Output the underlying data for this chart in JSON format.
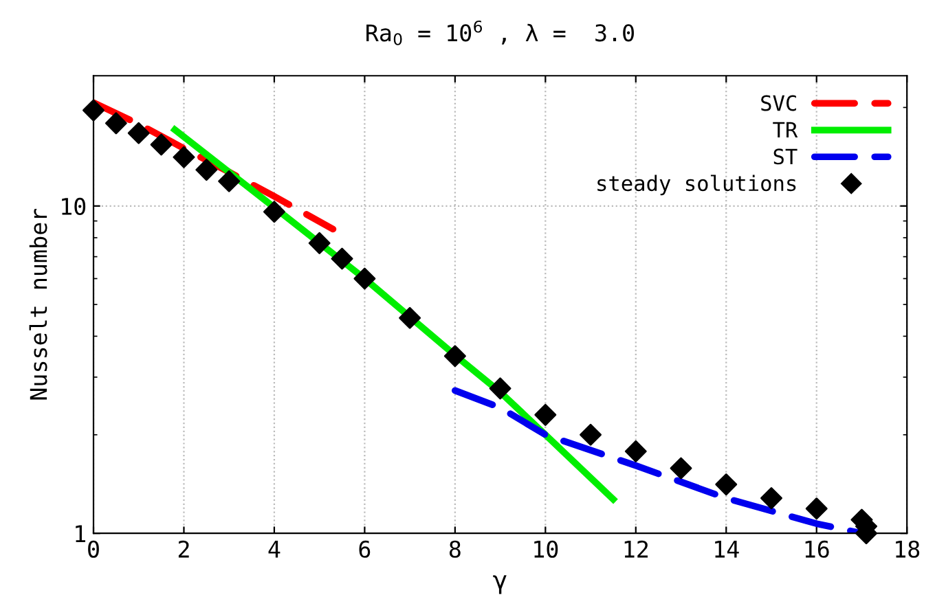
{
  "chart_data": {
    "type": "line",
    "title": "Ra$_{0}$ = 10$^{6}$ , λ =  3.0",
    "xlabel": "γ",
    "ylabel": "Nusselt number",
    "log": "y",
    "xlim": [
      0,
      18
    ],
    "xticks": [
      0,
      2,
      4,
      6,
      8,
      10,
      12,
      14,
      16,
      18
    ],
    "ylim": [
      1,
      25
    ],
    "yticks": [
      1,
      10
    ],
    "grid": true,
    "legend": "top right",
    "series": [
      {
        "name": "SVC",
        "line_style": "dashed",
        "color": "#ff0000",
        "x": [
          0,
          1,
          2,
          3,
          4,
          5.3
        ],
        "values": [
          20.7,
          17.8,
          15.0,
          12.7,
          10.7,
          8.5
        ]
      },
      {
        "name": "TR",
        "line_style": "solid",
        "color": "#00ee00",
        "x": [
          1.8,
          4,
          6,
          8,
          9,
          10,
          11.5
        ],
        "values": [
          17.1,
          9.9,
          6.0,
          3.5,
          2.7,
          2.0,
          1.27
        ]
      },
      {
        "name": "ST",
        "line_style": "dashed",
        "color": "#0000ee",
        "x": [
          8,
          9,
          10,
          12,
          14,
          16,
          17
        ],
        "values": [
          2.73,
          2.42,
          2.0,
          1.61,
          1.28,
          1.07,
          1.0
        ]
      },
      {
        "name": "steady solutions",
        "type": "scatter",
        "marker": "diamond",
        "color": "#000000",
        "x": [
          0,
          0.5,
          1,
          1.5,
          2,
          2.5,
          3,
          4,
          5,
          5.5,
          6,
          7,
          8,
          9,
          10,
          11,
          12,
          13,
          14,
          15,
          16,
          17,
          17.1,
          17.1
        ],
        "values": [
          19.6,
          17.9,
          16.7,
          15.4,
          14.1,
          12.9,
          11.9,
          9.6,
          7.7,
          6.9,
          6.0,
          4.55,
          3.48,
          2.77,
          2.3,
          2.0,
          1.78,
          1.58,
          1.41,
          1.28,
          1.19,
          1.1,
          1.05,
          1.0
        ]
      }
    ]
  }
}
